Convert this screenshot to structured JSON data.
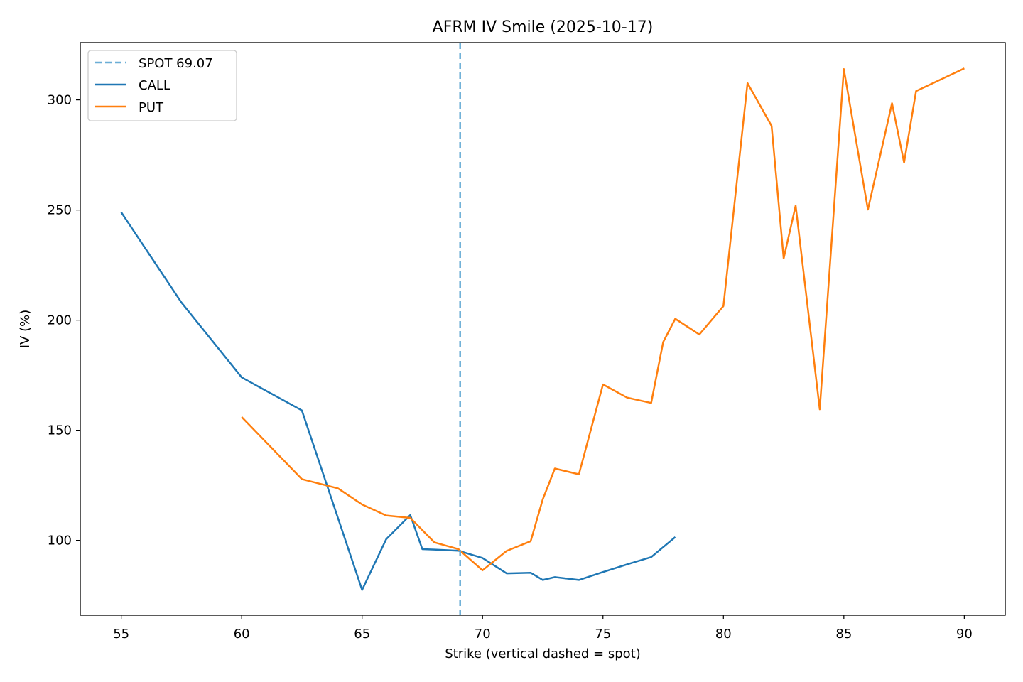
{
  "chart_data": {
    "type": "line",
    "title": "AFRM IV Smile (2025-10-17)",
    "xlabel": "Strike (vertical dashed = spot)",
    "ylabel": "IV (%)",
    "xlim": [
      53.3,
      91.7
    ],
    "ylim": [
      66,
      326
    ],
    "xticks": [
      55,
      60,
      65,
      70,
      75,
      80,
      85,
      90
    ],
    "yticks": [
      100,
      150,
      200,
      250,
      300
    ],
    "grid": false,
    "legend_position": "top-left",
    "spot": {
      "label": "SPOT 69.07",
      "value": 69.07,
      "color": "#6baed6"
    },
    "series": [
      {
        "name": "CALL",
        "color": "#1f77b4",
        "x": [
          55,
          57.5,
          60,
          62.5,
          65,
          66,
          67,
          67.5,
          68,
          69,
          70,
          71,
          72,
          72.5,
          73,
          74,
          75,
          76,
          77,
          78
        ],
        "y": [
          249,
          208,
          174,
          159,
          77.5,
          100.5,
          111.5,
          96,
          95.8,
          95.3,
          92,
          85,
          85.3,
          82,
          83.3,
          82,
          85.6,
          89.1,
          92.4,
          101.5
        ]
      },
      {
        "name": "PUT",
        "color": "#ff7f0e",
        "x": [
          60,
          62.5,
          64,
          65,
          66,
          67,
          68,
          69,
          70,
          71,
          72,
          72.5,
          73,
          74,
          75,
          76,
          77,
          77.5,
          78,
          79,
          80,
          81,
          82,
          82.5,
          83,
          84,
          85,
          86,
          87,
          87.5,
          88,
          90
        ],
        "y": [
          156,
          127.8,
          123.6,
          116.3,
          111.3,
          110.2,
          99.1,
          96,
          86.4,
          95.2,
          99.6,
          118.6,
          132.6,
          130,
          170.8,
          164.8,
          162.4,
          190,
          200.6,
          193.5,
          206.4,
          307.6,
          288.2,
          228,
          252,
          159.5,
          314,
          250.2,
          298.5,
          271.5,
          304,
          314.3
        ]
      }
    ]
  }
}
